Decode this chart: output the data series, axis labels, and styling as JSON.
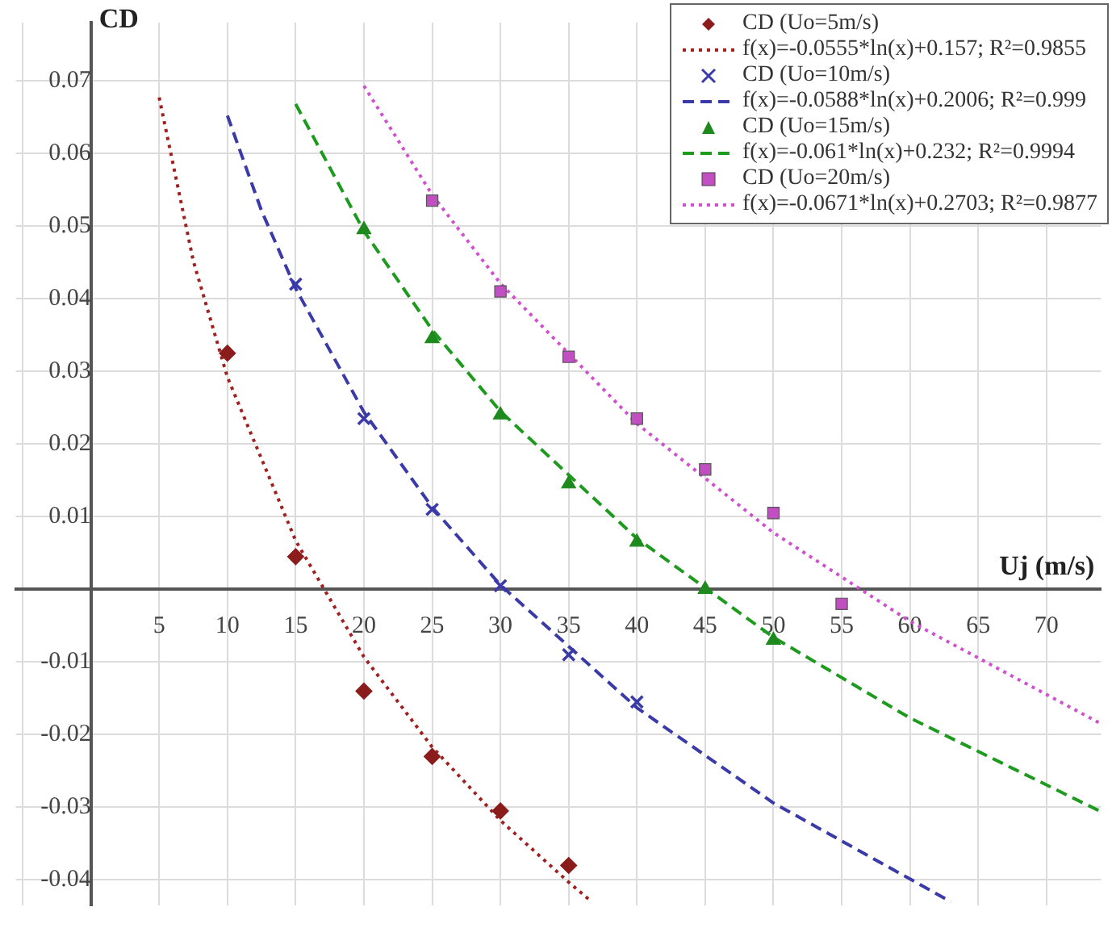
{
  "chart_data": {
    "type": "scatter",
    "xlabel": "Uj (m/s)",
    "ylabel": "CD",
    "xlim": [
      -5.5,
      74
    ],
    "ylim": [
      -0.0435,
      0.078
    ],
    "xticks": [
      {
        "value": -5,
        "label": null
      },
      {
        "value": 0,
        "label": null
      },
      5,
      10,
      15,
      20,
      25,
      30,
      35,
      40,
      45,
      50,
      55,
      60,
      65,
      70
    ],
    "yticks": [
      -0.04,
      -0.03,
      -0.02,
      -0.01,
      {
        "value": 0,
        "label": null
      },
      0.01,
      0.02,
      0.03,
      0.04,
      0.05,
      0.06,
      0.07
    ],
    "grid": true,
    "legend": "top right",
    "series": [
      {
        "name": "CD (Uo=5m/s)",
        "type": "scatter",
        "marker": "diamond",
        "color": "#8b1c1c",
        "x": [
          10,
          15,
          20,
          25,
          30,
          35
        ],
        "values": [
          0.0325,
          0.0045,
          -0.014,
          -0.023,
          -0.0305,
          -0.038
        ]
      },
      {
        "name": "f(x)=-0.0555*ln(x)+0.157; R²=0.9855",
        "type": "line",
        "marker": "none",
        "line_style": "dotted",
        "color": "#a02020",
        "x": [
          5,
          7.5,
          10,
          15,
          20,
          25,
          30,
          35,
          36.5
        ],
        "values": [
          0.0677,
          0.0452,
          0.0292,
          0.0067,
          -0.0093,
          -0.0217,
          -0.0318,
          -0.0403,
          -0.0427
        ]
      },
      {
        "name": "CD (Uo=10m/s)",
        "type": "scatter",
        "marker": "cross",
        "color": "#3a3aa8",
        "x": [
          15,
          20,
          25,
          30,
          35,
          40
        ],
        "values": [
          0.042,
          0.0235,
          0.011,
          0.0005,
          -0.009,
          -0.0155
        ]
      },
      {
        "name": "f(x)=-0.0588*ln(x)+0.2006; R²=0.999",
        "type": "line",
        "marker": "none",
        "line_style": "dashed",
        "color": "#3a3aa8",
        "x": [
          10,
          12.5,
          15,
          20,
          25,
          30,
          40,
          50,
          63
        ],
        "values": [
          0.0652,
          0.0521,
          0.0414,
          0.0244,
          0.0113,
          0.0006,
          -0.0163,
          -0.0294,
          -0.043
        ]
      },
      {
        "name": "CD (Uo=15m/s)",
        "type": "scatter",
        "marker": "triangle",
        "color": "#1e8a1e",
        "x": [
          20,
          25,
          30,
          35,
          40,
          45,
          50
        ],
        "values": [
          0.0495,
          0.0345,
          0.024,
          0.0145,
          0.0065,
          0,
          -0.007
        ]
      },
      {
        "name": "f(x)=-0.061*ln(x)+0.232; R²=0.9994",
        "type": "line",
        "marker": "none",
        "line_style": "dashed",
        "color": "#1e9a1e",
        "x": [
          15,
          20,
          25,
          30,
          40,
          50,
          60,
          74
        ],
        "values": [
          0.0668,
          0.0493,
          0.0357,
          0.0245,
          0.007,
          -0.0066,
          -0.0177,
          -0.0306
        ]
      },
      {
        "name": "CD (Uo=20m/s)",
        "type": "scatter",
        "marker": "square",
        "color": "#c24fc2",
        "x": [
          25,
          30,
          35,
          40,
          45,
          50,
          55
        ],
        "values": [
          0.0535,
          0.041,
          0.032,
          0.0235,
          0.0165,
          0.0105,
          -0.002
        ]
      },
      {
        "name": "f(x)=-0.0671*ln(x)+0.2703; R²=0.9877",
        "type": "line",
        "marker": "none",
        "line_style": "dotted",
        "color": "#d050d0",
        "x": [
          20,
          25,
          30,
          40,
          50,
          60,
          74
        ],
        "values": [
          0.0693,
          0.0543,
          0.0421,
          0.0228,
          0.0078,
          -0.0044,
          -0.0185
        ]
      }
    ]
  }
}
